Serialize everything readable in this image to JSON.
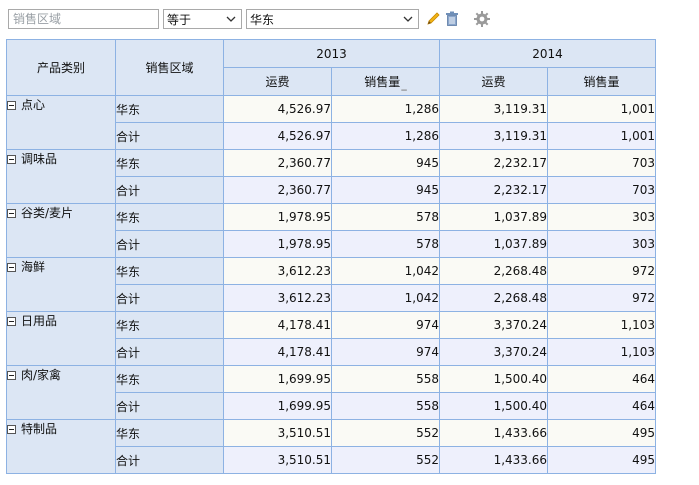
{
  "filter": {
    "field_placeholder": "销售区域",
    "operator": "等于",
    "value": "华东"
  },
  "table": {
    "col_headers": {
      "category": "产品类别",
      "region": "销售区域",
      "years": [
        "2013",
        "2014"
      ],
      "measures": [
        "运费",
        "销售量"
      ]
    },
    "groups": [
      {
        "category": "点心",
        "rows": [
          {
            "region": "华东",
            "v": [
              "4,526.97",
              "1,286",
              "3,119.31",
              "1,001"
            ]
          },
          {
            "region": "合计",
            "v": [
              "4,526.97",
              "1,286",
              "3,119.31",
              "1,001"
            ]
          }
        ]
      },
      {
        "category": "调味品",
        "rows": [
          {
            "region": "华东",
            "v": [
              "2,360.77",
              "945",
              "2,232.17",
              "703"
            ]
          },
          {
            "region": "合计",
            "v": [
              "2,360.77",
              "945",
              "2,232.17",
              "703"
            ]
          }
        ]
      },
      {
        "category": "谷类/麦片",
        "rows": [
          {
            "region": "华东",
            "v": [
              "1,978.95",
              "578",
              "1,037.89",
              "303"
            ]
          },
          {
            "region": "合计",
            "v": [
              "1,978.95",
              "578",
              "1,037.89",
              "303"
            ]
          }
        ]
      },
      {
        "category": "海鲜",
        "rows": [
          {
            "region": "华东",
            "v": [
              "3,612.23",
              "1,042",
              "2,268.48",
              "972"
            ]
          },
          {
            "region": "合计",
            "v": [
              "3,612.23",
              "1,042",
              "2,268.48",
              "972"
            ]
          }
        ]
      },
      {
        "category": "日用品",
        "rows": [
          {
            "region": "华东",
            "v": [
              "4,178.41",
              "974",
              "3,370.24",
              "1,103"
            ]
          },
          {
            "region": "合计",
            "v": [
              "4,178.41",
              "974",
              "3,370.24",
              "1,103"
            ]
          }
        ]
      },
      {
        "category": "肉/家禽",
        "rows": [
          {
            "region": "华东",
            "v": [
              "1,699.95",
              "558",
              "1,500.40",
              "464"
            ]
          },
          {
            "region": "合计",
            "v": [
              "1,699.95",
              "558",
              "1,500.40",
              "464"
            ]
          }
        ]
      },
      {
        "category": "特制品",
        "rows": [
          {
            "region": "华东",
            "v": [
              "3,510.51",
              "552",
              "1,433.66",
              "495"
            ]
          },
          {
            "region": "合计",
            "v": [
              "3,510.51",
              "552",
              "1,433.66",
              "495"
            ]
          }
        ]
      }
    ]
  }
}
